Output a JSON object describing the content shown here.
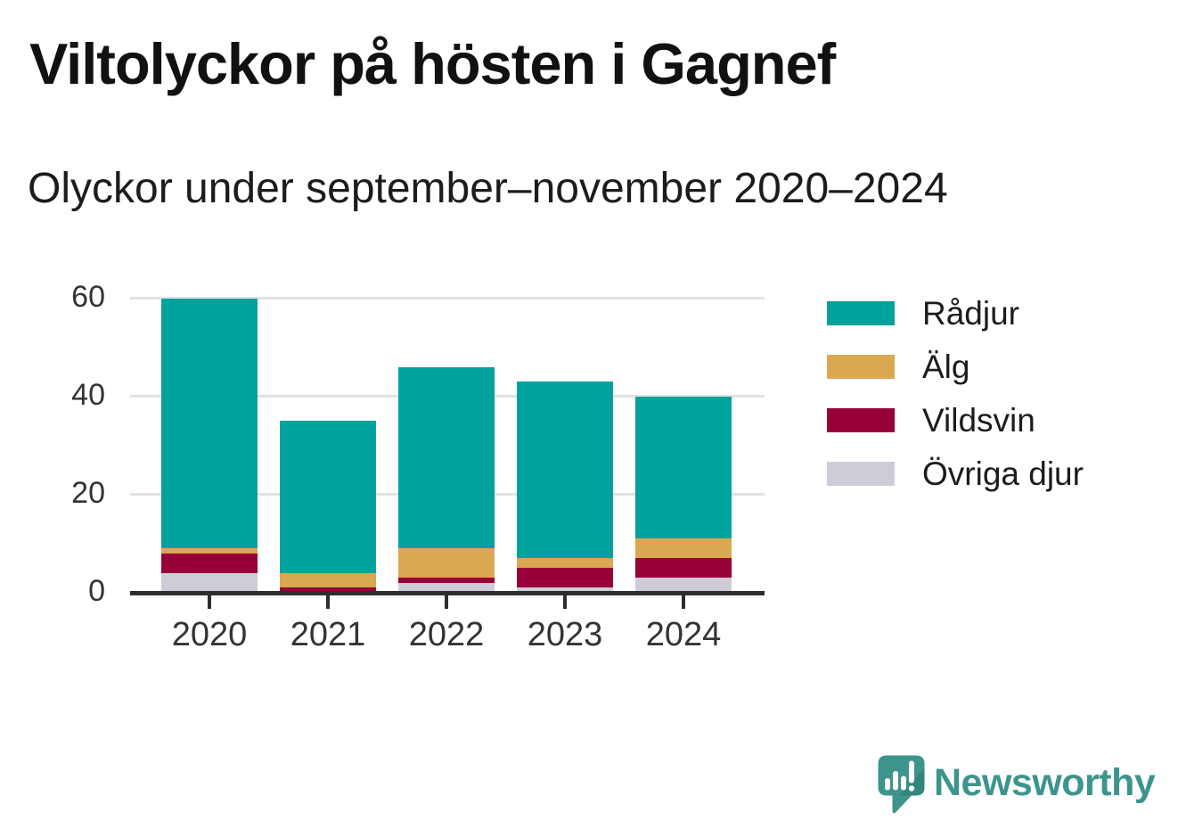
{
  "header": {
    "title": "Viltolyckor på hösten i Gagnef",
    "subtitle": "Olyckor under september–november 2020–2024"
  },
  "chart_data": {
    "type": "bar",
    "stacked": true,
    "title": "Viltolyckor på hösten i Gagnef",
    "subtitle": "Olyckor under september–november 2020–2024",
    "categories": [
      "2020",
      "2021",
      "2022",
      "2023",
      "2024"
    ],
    "series": [
      {
        "name": "Rådjur",
        "color": "#00a29b",
        "values": [
          51,
          31,
          37,
          36,
          29
        ]
      },
      {
        "name": "Älg",
        "color": "#d9a850",
        "values": [
          1,
          3,
          6,
          2,
          4
        ]
      },
      {
        "name": "Vildsvin",
        "color": "#970038",
        "values": [
          4,
          1,
          1,
          4,
          4
        ]
      },
      {
        "name": "Övriga djur",
        "color": "#cfccd7",
        "values": [
          4,
          0,
          2,
          1,
          3
        ]
      }
    ],
    "stack_order_bottom_to_top": [
      "Övriga djur",
      "Vildsvin",
      "Älg",
      "Rådjur"
    ],
    "totals": [
      60,
      35,
      46,
      43,
      40
    ],
    "yticks": [
      0,
      20,
      40,
      60
    ],
    "ylim": [
      0,
      62
    ],
    "xlabel": "",
    "ylabel": "",
    "grid": true,
    "legend_position": "right"
  },
  "footer": {
    "brand": "Newsworthy",
    "brand_color": "#3d948c"
  },
  "colors": {
    "background": "#ffffff",
    "title_text": "#111111",
    "axis_text": "#333333",
    "axis_line": "#2d2d2d",
    "gridline": "#e2e2e2",
    "teal": "#00a29b",
    "gold": "#d9a850",
    "burgundy": "#970038",
    "light_gray": "#cfccd7",
    "brand_teal": "#3d948c"
  }
}
